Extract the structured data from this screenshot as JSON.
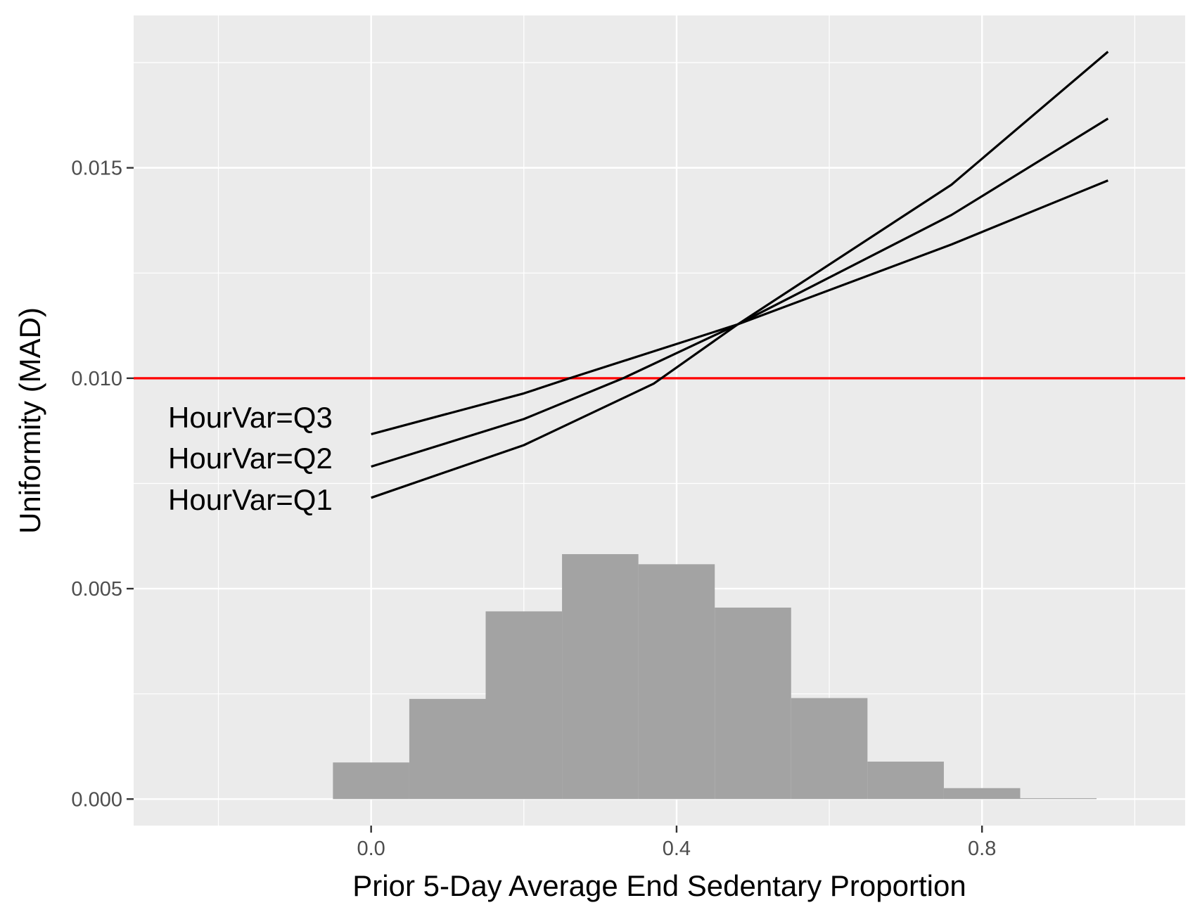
{
  "chart_data": {
    "type": "line",
    "title": "",
    "xlabel": "Prior 5-Day Average End Sedentary Proportion",
    "ylabel": "Uniformity (MAD)",
    "xlim": [
      -0.311,
      1.066
    ],
    "ylim": [
      -0.00063,
      0.01862
    ],
    "x_ticks": [
      0.0,
      0.4,
      0.8
    ],
    "x_tick_labels": [
      "0.0",
      "0.4",
      "0.8"
    ],
    "x_minor_ticks": [
      -0.2,
      0.2,
      0.6,
      1.0
    ],
    "y_ticks": [
      0.0,
      0.005,
      0.01,
      0.015
    ],
    "y_tick_labels": [
      "0.000",
      "0.005",
      "0.010",
      "0.015"
    ],
    "y_minor_ticks": [
      0.0025,
      0.0075,
      0.0125,
      0.0175
    ],
    "grid": true,
    "colors": {
      "panel": "#ebebeb",
      "grid": "#ffffff",
      "line": "#000000",
      "reference": "#ff0000",
      "histogram": "#a3a3a3"
    },
    "reference_line": {
      "y": 0.01
    },
    "series": [
      {
        "name": "HourVar=Q1",
        "label": "HourVar=Q1",
        "x": [
          0.0,
          0.2,
          0.37,
          0.48,
          0.76,
          0.965
        ],
        "y": [
          0.00716,
          0.00841,
          0.00987,
          0.01128,
          0.0146,
          0.01776
        ]
      },
      {
        "name": "HourVar=Q2",
        "label": "HourVar=Q2",
        "x": [
          0.0,
          0.2,
          0.33,
          0.48,
          0.76,
          0.965
        ],
        "y": [
          0.0079,
          0.00903,
          0.01,
          0.01128,
          0.01388,
          0.01617
        ]
      },
      {
        "name": "HourVar=Q3",
        "label": "HourVar=Q3",
        "x": [
          0.0,
          0.2,
          0.26,
          0.48,
          0.76,
          0.965
        ],
        "y": [
          0.00867,
          0.00964,
          0.01,
          0.01128,
          0.01318,
          0.0147
        ]
      }
    ],
    "histogram": {
      "bin_edges": [
        -0.05,
        0.05,
        0.15,
        0.25,
        0.35,
        0.45,
        0.55,
        0.65,
        0.75,
        0.85,
        0.95
      ],
      "values": [
        0.00087,
        0.00238,
        0.00446,
        0.00582,
        0.00558,
        0.00455,
        0.0024,
        0.00089,
        0.00026,
        2e-05
      ]
    }
  }
}
